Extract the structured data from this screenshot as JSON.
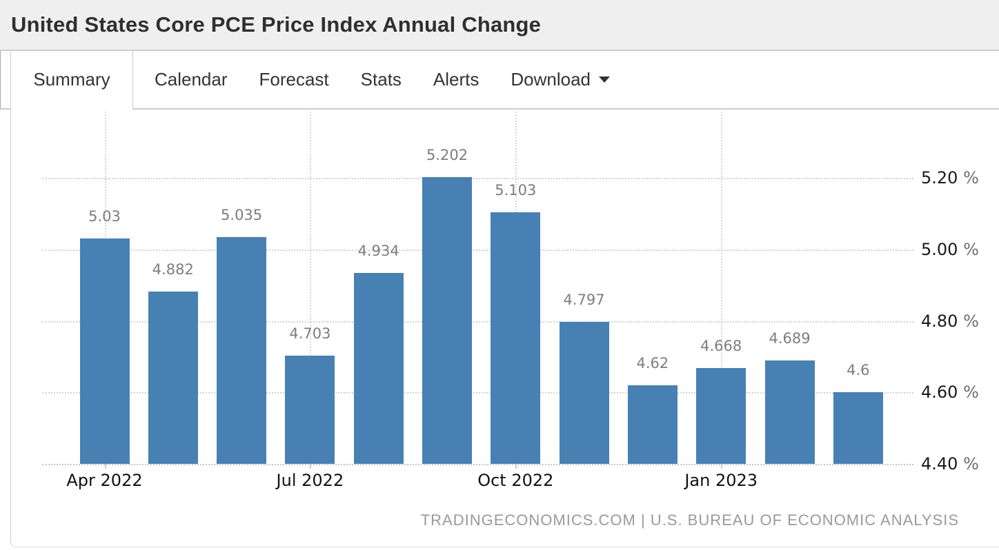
{
  "header": {
    "title": "United States Core PCE Price Index Annual Change"
  },
  "tabs": {
    "items": [
      {
        "label": "Summary",
        "active": true
      },
      {
        "label": "Calendar",
        "active": false
      },
      {
        "label": "Forecast",
        "active": false
      },
      {
        "label": "Stats",
        "active": false
      },
      {
        "label": "Alerts",
        "active": false
      },
      {
        "label": "Download",
        "active": false,
        "has_dropdown": true
      }
    ]
  },
  "chart_data": {
    "type": "bar",
    "title": "United States Core PCE Price Index Annual Change",
    "categories": [
      "Apr 2022",
      "",
      "",
      "Jul 2022",
      "",
      "",
      "Oct 2022",
      "",
      "",
      "Jan 2023",
      "",
      ""
    ],
    "values": [
      5.03,
      4.882,
      5.035,
      4.703,
      4.934,
      5.202,
      5.103,
      4.797,
      4.62,
      4.668,
      4.689,
      4.6
    ],
    "value_labels": [
      "5.03",
      "4.882",
      "5.035",
      "4.703",
      "4.934",
      "5.202",
      "5.103",
      "4.797",
      "4.62",
      "4.668",
      "4.689",
      "4.6"
    ],
    "x_ticks": [
      {
        "index": 0,
        "label": "Apr 2022"
      },
      {
        "index": 3,
        "label": "Jul 2022"
      },
      {
        "index": 6,
        "label": "Oct 2022"
      },
      {
        "index": 9,
        "label": "Jan 2023"
      }
    ],
    "y_axis": {
      "side": "right",
      "unit": "%",
      "ticks": [
        "4.40",
        "4.60",
        "4.80",
        "5.00",
        "5.20"
      ],
      "tick_values": [
        4.4,
        4.6,
        4.8,
        5.0,
        5.2
      ],
      "min": 4.4,
      "max": 5.25
    },
    "grid": true,
    "legend": "none",
    "bar_color": "#4781b4"
  },
  "footer": {
    "credit": "TRADINGECONOMICS.COM | U.S. BUREAU OF ECONOMIC ANALYSIS"
  },
  "colors": {
    "bar": "#4781b4",
    "header_bg": "#efefef",
    "border": "#cccccc",
    "grid": "#d2d2d2",
    "value_label": "#7d7d7d",
    "x_label": "#111111",
    "y_label": "#1a1a1a",
    "y_unit": "#6e6e6e",
    "footer_text": "#9a9a9a"
  }
}
